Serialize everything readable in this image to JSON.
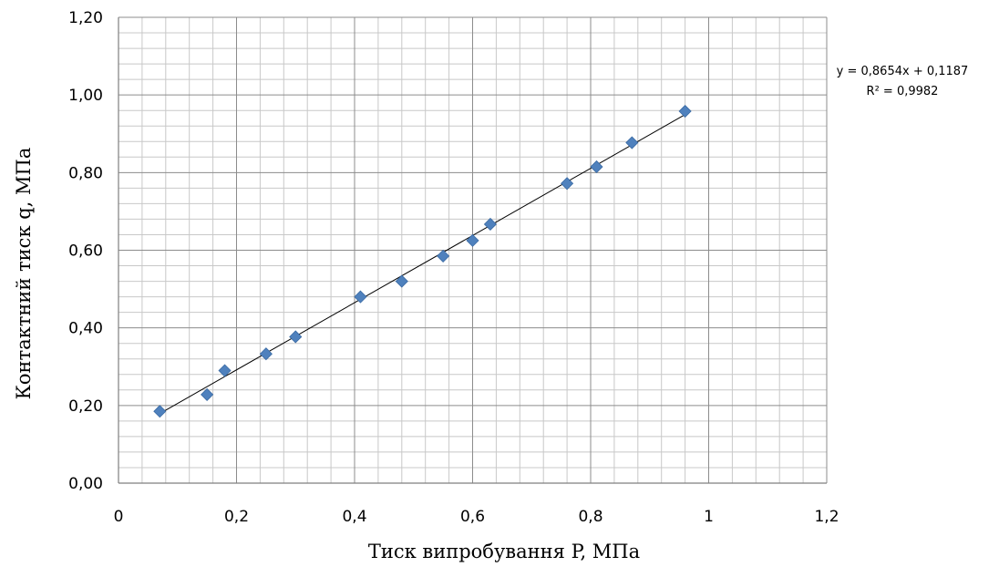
{
  "chart_data": {
    "type": "scatter",
    "xlabel": "Тиск випробування P, МПа",
    "ylabel": "Контактний тиск q, МПа",
    "xlim": [
      0,
      1.2
    ],
    "ylim": [
      0,
      1.2
    ],
    "x_ticks": [
      "0",
      "0,2",
      "0,4",
      "0,6",
      "0,8",
      "1",
      "1,2"
    ],
    "y_ticks": [
      "0,00",
      "0,20",
      "0,40",
      "0,60",
      "0,80",
      "1,00",
      "1,20"
    ],
    "grid": true,
    "legend": "none",
    "marker_color": "#4f81bd",
    "series": [
      {
        "x": [
          0.07,
          0.15,
          0.18,
          0.25,
          0.3,
          0.41,
          0.48,
          0.55,
          0.6,
          0.63,
          0.76,
          0.81,
          0.87,
          0.96
        ],
        "y": [
          0.185,
          0.228,
          0.29,
          0.333,
          0.377,
          0.48,
          0.52,
          0.585,
          0.625,
          0.667,
          0.772,
          0.815,
          0.877,
          0.958
        ]
      }
    ],
    "trendline": {
      "slope": 0.8654,
      "intercept": 0.1187,
      "x_range": [
        0.07,
        0.96
      ],
      "equation": "y = 0,8654x + 0,1187",
      "r2": "R² = 0,9982"
    }
  }
}
